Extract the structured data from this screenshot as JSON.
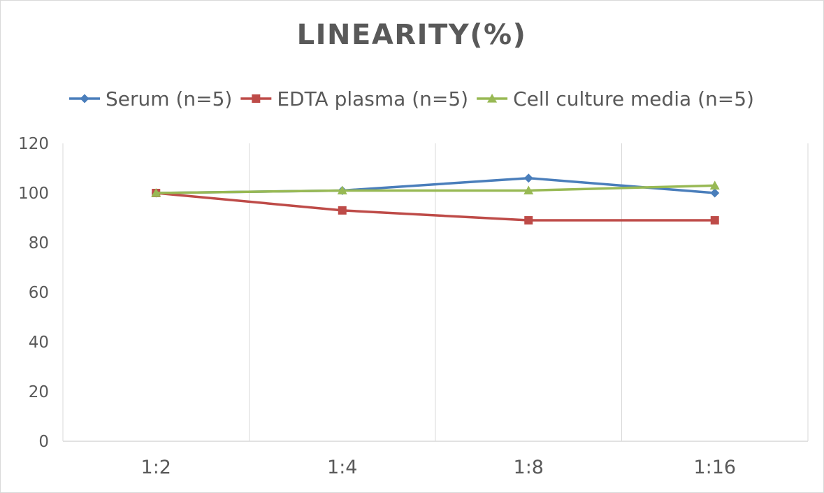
{
  "chart_data": {
    "type": "line",
    "title": "LINEARITY(%)",
    "categories": [
      "1:2",
      "1:4",
      "1:8",
      "1:16"
    ],
    "ylim": [
      0,
      120
    ],
    "yticks": [
      0,
      20,
      40,
      60,
      80,
      100,
      120
    ],
    "legend_position": "top",
    "grid": "vertical",
    "series": [
      {
        "name": "Serum (n=5)",
        "values": [
          100,
          101,
          106,
          100
        ],
        "color": "#4a7ebb",
        "marker": "diamond"
      },
      {
        "name": "EDTA plasma (n=5)",
        "values": [
          100,
          93,
          89,
          89
        ],
        "color": "#be4b48",
        "marker": "square"
      },
      {
        "name": "Cell culture media (n=5)",
        "values": [
          100,
          101,
          101,
          103
        ],
        "color": "#98b954",
        "marker": "triangle"
      }
    ]
  }
}
